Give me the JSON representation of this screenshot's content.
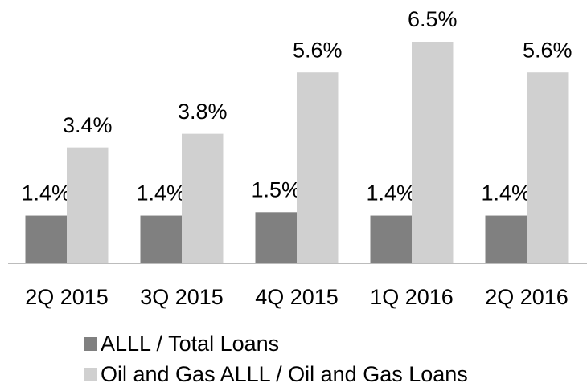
{
  "chart_data": {
    "type": "bar",
    "categories": [
      "2Q 2015",
      "3Q 2015",
      "4Q 2015",
      "1Q 2016",
      "2Q 2016"
    ],
    "series": [
      {
        "name": "ALLL / Total Loans",
        "color": "#808080",
        "values": [
          1.4,
          1.4,
          1.5,
          1.4,
          1.4
        ],
        "value_labels": [
          "1.4%",
          "1.4%",
          "1.5%",
          "1.4%",
          "1.4%"
        ]
      },
      {
        "name": "Oil and Gas ALLL / Oil and Gas Loans",
        "color": "#d0d0d0",
        "values": [
          3.4,
          3.8,
          5.6,
          6.5,
          5.6
        ],
        "value_labels": [
          "3.4%",
          "3.8%",
          "5.6%",
          "6.5%",
          "5.6%"
        ]
      }
    ]
  }
}
